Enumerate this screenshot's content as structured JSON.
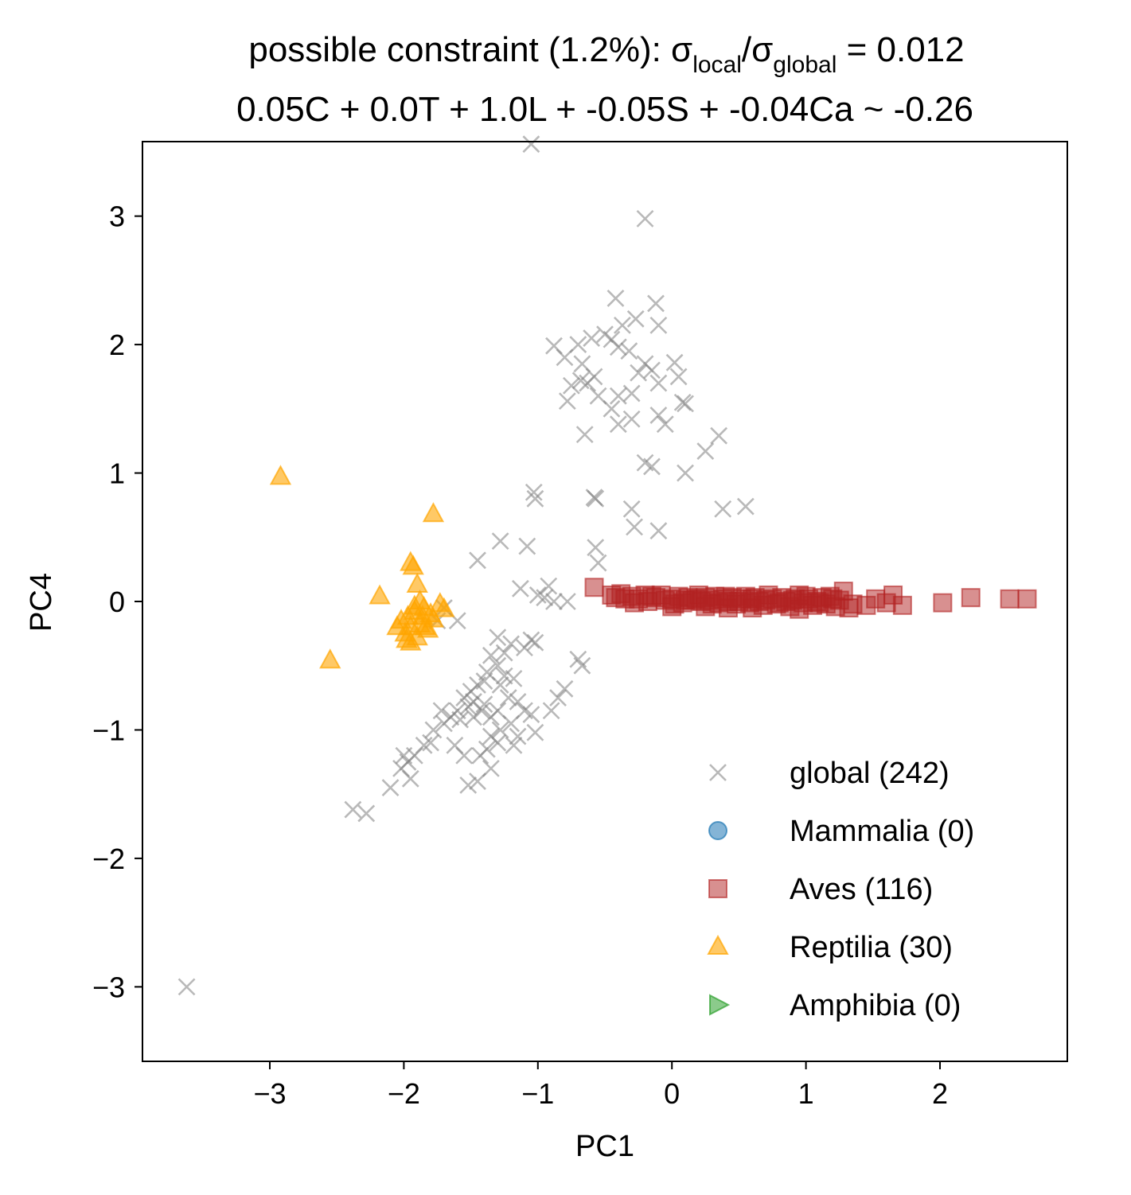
{
  "chart_data": {
    "type": "scatter",
    "title_line1": {
      "prefix": "possible constraint (1.2%): σ",
      "sub1": "local",
      "mid": "/σ",
      "sub2": "global",
      "suffix": " = 0.012"
    },
    "title_line2": "0.05C + 0.0T + 1.0L + -0.05S + -0.04Ca ~ -0.26",
    "xlabel": "PC1",
    "ylabel": "PC4",
    "xlim": [
      -3.95,
      2.95
    ],
    "ylim": [
      -3.58,
      3.58
    ],
    "xticks": [
      -3,
      -2,
      -1,
      0,
      1,
      2
    ],
    "yticks": [
      -3,
      -2,
      -1,
      0,
      1,
      2,
      3
    ],
    "xtick_labels": [
      "−3",
      "−2",
      "−1",
      "0",
      "1",
      "2"
    ],
    "ytick_labels": [
      "−3",
      "−2",
      "−1",
      "0",
      "1",
      "2",
      "3"
    ],
    "legend_position": "lower right",
    "series": [
      {
        "name": "global (242)",
        "marker": "x",
        "color": "#808080",
        "points": [
          [
            -3.62,
            -3.0
          ],
          [
            -1.05,
            3.56
          ],
          [
            -0.2,
            2.98
          ],
          [
            -0.42,
            2.36
          ],
          [
            -0.12,
            2.32
          ],
          [
            -0.1,
            2.15
          ],
          [
            -0.27,
            2.2
          ],
          [
            -0.37,
            2.15
          ],
          [
            -0.5,
            2.08
          ],
          [
            -0.45,
            2.04
          ],
          [
            -0.4,
            1.98
          ],
          [
            -0.6,
            2.05
          ],
          [
            -0.7,
            2.0
          ],
          [
            -0.88,
            1.99
          ],
          [
            -0.8,
            1.9
          ],
          [
            -0.67,
            1.85
          ],
          [
            -0.32,
            1.95
          ],
          [
            -0.2,
            1.85
          ],
          [
            -0.15,
            1.8
          ],
          [
            -0.25,
            1.78
          ],
          [
            0.02,
            1.86
          ],
          [
            0.05,
            1.75
          ],
          [
            -0.58,
            1.75
          ],
          [
            -0.63,
            1.7
          ],
          [
            -0.68,
            1.72
          ],
          [
            -0.75,
            1.68
          ],
          [
            -0.55,
            1.6
          ],
          [
            -0.4,
            1.6
          ],
          [
            -0.3,
            1.62
          ],
          [
            -0.1,
            1.7
          ],
          [
            -0.78,
            1.56
          ],
          [
            -0.45,
            1.5
          ],
          [
            0.08,
            1.55
          ],
          [
            0.1,
            1.54
          ],
          [
            -0.3,
            1.42
          ],
          [
            -0.1,
            1.45
          ],
          [
            -0.4,
            1.38
          ],
          [
            -0.05,
            1.38
          ],
          [
            -0.65,
            1.3
          ],
          [
            0.35,
            1.29
          ],
          [
            0.25,
            1.17
          ],
          [
            -0.2,
            1.08
          ],
          [
            -0.15,
            1.05
          ],
          [
            0.1,
            1.0
          ],
          [
            -1.03,
            0.85
          ],
          [
            -1.02,
            0.8
          ],
          [
            -0.58,
            0.81
          ],
          [
            -0.57,
            0.8
          ],
          [
            -0.3,
            0.72
          ],
          [
            0.38,
            0.72
          ],
          [
            0.55,
            0.74
          ],
          [
            -0.28,
            0.58
          ],
          [
            -0.1,
            0.55
          ],
          [
            -0.57,
            0.42
          ],
          [
            -1.08,
            0.43
          ],
          [
            -1.28,
            0.47
          ],
          [
            -1.45,
            0.32
          ],
          [
            -0.55,
            0.3
          ],
          [
            -1.13,
            0.1
          ],
          [
            -0.92,
            0.12
          ],
          [
            -0.95,
            0.03
          ],
          [
            -1.0,
            0.05
          ],
          [
            -0.88,
            0.0
          ],
          [
            -0.78,
            0.0
          ],
          [
            -1.7,
            -0.05
          ],
          [
            -1.75,
            -0.15
          ],
          [
            -1.6,
            -0.15
          ],
          [
            -1.05,
            -0.3
          ],
          [
            -1.02,
            -0.32
          ],
          [
            -1.1,
            -0.36
          ],
          [
            -1.3,
            -0.28
          ],
          [
            -1.2,
            -0.33
          ],
          [
            -0.7,
            -0.45
          ],
          [
            -0.67,
            -0.5
          ],
          [
            -1.25,
            -0.4
          ],
          [
            -1.3,
            -0.5
          ],
          [
            -1.35,
            -0.42
          ],
          [
            -1.38,
            -0.55
          ],
          [
            -1.25,
            -0.58
          ],
          [
            -1.4,
            -0.62
          ],
          [
            -1.45,
            -0.65
          ],
          [
            -1.28,
            -0.65
          ],
          [
            -1.18,
            -0.6
          ],
          [
            -1.5,
            -0.7
          ],
          [
            -1.55,
            -0.75
          ],
          [
            -1.48,
            -0.78
          ],
          [
            -1.52,
            -0.82
          ],
          [
            -1.6,
            -0.85
          ],
          [
            -1.65,
            -0.9
          ],
          [
            -1.72,
            -0.85
          ],
          [
            -1.58,
            -0.92
          ],
          [
            -1.7,
            -0.95
          ],
          [
            -1.78,
            -1.0
          ],
          [
            -1.42,
            -0.85
          ],
          [
            -1.35,
            -0.9
          ],
          [
            -1.4,
            -0.8
          ],
          [
            -1.48,
            -0.9
          ],
          [
            -1.3,
            -0.85
          ],
          [
            -1.22,
            -0.75
          ],
          [
            -1.15,
            -0.78
          ],
          [
            -1.2,
            -0.95
          ],
          [
            -1.28,
            -1.0
          ],
          [
            -1.15,
            -1.05
          ],
          [
            -1.35,
            -1.05
          ],
          [
            -1.3,
            -1.1
          ],
          [
            -1.18,
            -1.12
          ],
          [
            -1.1,
            -0.85
          ],
          [
            -1.05,
            -0.88
          ],
          [
            -1.02,
            -1.02
          ],
          [
            -0.9,
            -0.85
          ],
          [
            -0.85,
            -0.75
          ],
          [
            -0.8,
            -0.68
          ],
          [
            -1.8,
            -1.1
          ],
          [
            -1.85,
            -1.12
          ],
          [
            -1.62,
            -1.12
          ],
          [
            -1.55,
            -1.2
          ],
          [
            -1.38,
            -1.15
          ],
          [
            -1.43,
            -1.2
          ],
          [
            -1.92,
            -1.2
          ],
          [
            -2.0,
            -1.2
          ],
          [
            -1.97,
            -1.25
          ],
          [
            -2.02,
            -1.3
          ],
          [
            -1.95,
            -1.38
          ],
          [
            -2.1,
            -1.45
          ],
          [
            -1.52,
            -1.43
          ],
          [
            -1.45,
            -1.4
          ],
          [
            -2.38,
            -1.62
          ],
          [
            -2.28,
            -1.65
          ],
          [
            -1.35,
            -1.3
          ]
        ]
      },
      {
        "name": "Mammalia (0)",
        "marker": "circle",
        "color": "#1f77b4",
        "points": []
      },
      {
        "name": "Aves (116)",
        "marker": "square",
        "color": "#b22222",
        "points": [
          [
            -0.58,
            0.11
          ],
          [
            -0.45,
            0.05
          ],
          [
            -0.38,
            0.06
          ],
          [
            -0.35,
            0.02
          ],
          [
            -0.3,
            0.04
          ],
          [
            -0.25,
            0.02
          ],
          [
            -0.2,
            0.05
          ],
          [
            -0.18,
            0.0
          ],
          [
            -0.12,
            0.03
          ],
          [
            -0.08,
            0.05
          ],
          [
            -0.05,
            0.01
          ],
          [
            0.0,
            0.02
          ],
          [
            0.05,
            0.04
          ],
          [
            0.08,
            -0.01
          ],
          [
            0.12,
            0.03
          ],
          [
            0.15,
            0.01
          ],
          [
            0.18,
            0.02
          ],
          [
            0.22,
            0.0
          ],
          [
            0.25,
            0.03
          ],
          [
            0.28,
            0.01
          ],
          [
            0.32,
            0.04
          ],
          [
            0.35,
            -0.01
          ],
          [
            0.38,
            0.02
          ],
          [
            0.42,
            0.0
          ],
          [
            0.45,
            0.03
          ],
          [
            0.48,
            -0.02
          ],
          [
            0.52,
            0.02
          ],
          [
            0.55,
            0.04
          ],
          [
            0.58,
            -0.01
          ],
          [
            0.62,
            0.03
          ],
          [
            0.65,
            0.0
          ],
          [
            0.68,
            -0.03
          ],
          [
            0.72,
            0.05
          ],
          [
            0.75,
            0.02
          ],
          [
            0.78,
            -0.02
          ],
          [
            0.82,
            0.03
          ],
          [
            0.85,
            0.0
          ],
          [
            0.88,
            -0.04
          ],
          [
            0.92,
            0.02
          ],
          [
            0.95,
            0.05
          ],
          [
            0.98,
            -0.01
          ],
          [
            1.02,
            0.02
          ],
          [
            1.05,
            -0.03
          ],
          [
            1.08,
            0.0
          ],
          [
            1.12,
            0.03
          ],
          [
            1.15,
            -0.02
          ],
          [
            1.18,
            0.04
          ],
          [
            1.22,
            -0.04
          ],
          [
            1.25,
            0.01
          ],
          [
            1.28,
            0.08
          ],
          [
            1.32,
            -0.05
          ],
          [
            1.35,
            -0.02
          ],
          [
            1.45,
            -0.03
          ],
          [
            1.52,
            0.02
          ],
          [
            1.6,
            -0.01
          ],
          [
            1.65,
            0.05
          ],
          [
            1.72,
            -0.03
          ],
          [
            2.02,
            -0.01
          ],
          [
            2.23,
            0.03
          ],
          [
            2.52,
            0.02
          ],
          [
            2.65,
            0.02
          ],
          [
            -0.42,
            0.03
          ],
          [
            -0.28,
            -0.01
          ],
          [
            -0.15,
            0.04
          ],
          [
            0.02,
            -0.02
          ],
          [
            0.1,
            0.01
          ],
          [
            0.2,
            0.05
          ],
          [
            0.3,
            -0.02
          ],
          [
            0.4,
            0.04
          ],
          [
            0.5,
            0.0
          ],
          [
            0.6,
            0.02
          ],
          [
            0.7,
            0.01
          ],
          [
            0.8,
            -0.01
          ],
          [
            0.9,
            0.01
          ],
          [
            1.0,
            0.04
          ],
          [
            1.1,
            -0.01
          ],
          [
            1.2,
            0.02
          ],
          [
            0.0,
            -0.04
          ],
          [
            0.25,
            -0.04
          ],
          [
            0.6,
            -0.05
          ],
          [
            0.95,
            -0.06
          ],
          [
            0.42,
            -0.05
          ]
        ]
      },
      {
        "name": "Reptilia (30)",
        "marker": "triangle-up",
        "color": "#ffa500",
        "points": [
          [
            -2.92,
            0.97
          ],
          [
            -1.78,
            0.68
          ],
          [
            -1.95,
            0.3
          ],
          [
            -1.93,
            0.27
          ],
          [
            -1.9,
            0.13
          ],
          [
            -2.18,
            0.04
          ],
          [
            -1.73,
            -0.02
          ],
          [
            -1.7,
            -0.06
          ],
          [
            -1.8,
            -0.1
          ],
          [
            -1.85,
            -0.05
          ],
          [
            -1.88,
            0.0
          ],
          [
            -1.92,
            -0.08
          ],
          [
            -1.97,
            -0.12
          ],
          [
            -2.02,
            -0.15
          ],
          [
            -1.95,
            -0.2
          ],
          [
            -1.88,
            -0.18
          ],
          [
            -1.82,
            -0.22
          ],
          [
            -2.05,
            -0.2
          ],
          [
            -1.98,
            -0.3
          ],
          [
            -1.95,
            -0.32
          ],
          [
            -1.9,
            -0.28
          ],
          [
            -2.55,
            -0.46
          ],
          [
            -1.86,
            -0.12
          ],
          [
            -1.92,
            -0.04
          ],
          [
            -1.99,
            -0.25
          ],
          [
            -1.84,
            -0.2
          ],
          [
            -1.78,
            -0.14
          ]
        ]
      },
      {
        "name": "Amphibia (0)",
        "marker": "triangle-right",
        "color": "#2ca02c",
        "points": []
      }
    ]
  }
}
